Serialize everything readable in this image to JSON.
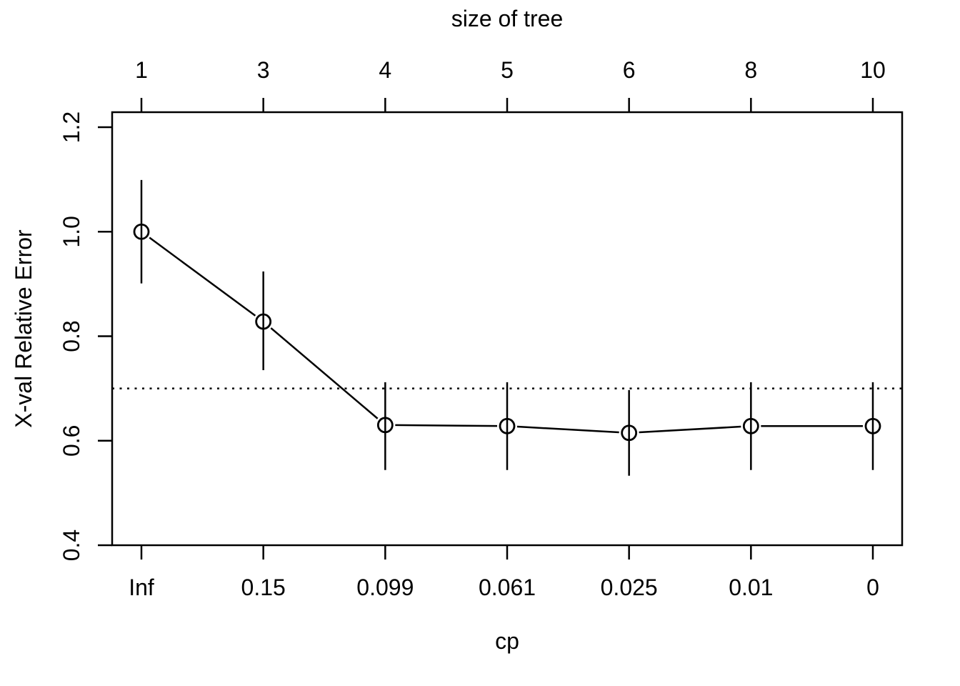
{
  "chart_data": {
    "type": "line",
    "title_top": "size of tree",
    "xlabel": "cp",
    "ylabel": "X-val Relative Error",
    "x_tick_labels_bottom": [
      "Inf",
      "0.15",
      "0.099",
      "0.061",
      "0.025",
      "0.01",
      "0"
    ],
    "x_tick_labels_top": [
      "1",
      "3",
      "4",
      "5",
      "6",
      "8",
      "10"
    ],
    "y_ticks": [
      0.4,
      0.6,
      0.8,
      1.0,
      1.2
    ],
    "y_tick_labels": [
      "0.4",
      "0.6",
      "0.8",
      "1.0",
      "1.2"
    ],
    "ylim": [
      0.4,
      1.23
    ],
    "series": [
      {
        "name": "xerror",
        "values": [
          1.0,
          0.828,
          0.63,
          0.628,
          0.615,
          0.628,
          0.628
        ]
      }
    ],
    "error_upper": [
      1.099,
      0.924,
      0.712,
      0.712,
      0.697,
      0.712,
      0.712
    ],
    "error_lower": [
      0.901,
      0.735,
      0.544,
      0.544,
      0.533,
      0.544,
      0.544
    ],
    "threshold_line": {
      "y": 0.7,
      "style": "dotted"
    },
    "marker": "open-circle",
    "grid": false,
    "legend": "none",
    "line_color": "#000000",
    "background_color": "#ffffff"
  }
}
